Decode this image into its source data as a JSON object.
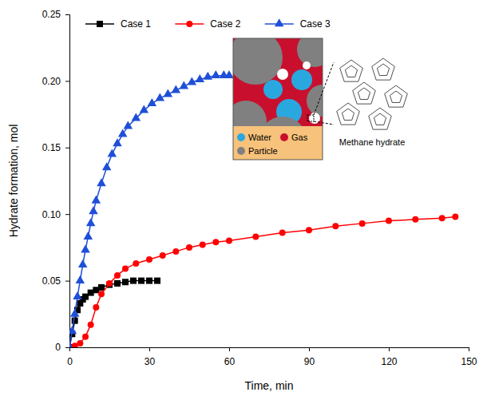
{
  "chart_data": {
    "type": "line",
    "xlabel": "Time, min",
    "ylabel": "Hydrate formation, mol",
    "xlim": [
      0,
      150
    ],
    "ylim": [
      0,
      0.25
    ],
    "xticks": [
      0,
      30,
      60,
      90,
      120,
      150
    ],
    "yticks": [
      0,
      0.05,
      {
        "value": 0.1,
        "label": "0.10"
      },
      0.15,
      {
        "value": 0.2,
        "label": "0.20"
      },
      0.25
    ],
    "legend": "upper left",
    "annotations": [
      "Water",
      "Gas",
      "Particle",
      "Methane hydrate"
    ],
    "series": [
      {
        "name": "Case 1",
        "color": "#000000",
        "marker": "square",
        "x": [
          0,
          1,
          2,
          3,
          4,
          5,
          6,
          8,
          10,
          12,
          15,
          18,
          21,
          24,
          27,
          30,
          33
        ],
        "values": [
          0,
          0.01,
          0.02,
          0.028,
          0.033,
          0.036,
          0.038,
          0.041,
          0.043,
          0.045,
          0.047,
          0.048,
          0.049,
          0.05,
          0.05,
          0.05,
          0.05
        ]
      },
      {
        "name": "Case 2",
        "color": "#ff0000",
        "marker": "circle",
        "x": [
          0,
          2,
          4,
          6,
          8,
          10,
          12,
          15,
          18,
          21,
          25,
          30,
          35,
          40,
          45,
          50,
          55,
          60,
          70,
          80,
          90,
          100,
          110,
          120,
          130,
          140,
          145
        ],
        "values": [
          0,
          0.001,
          0.003,
          0.008,
          0.017,
          0.03,
          0.04,
          0.048,
          0.054,
          0.059,
          0.063,
          0.066,
          0.069,
          0.072,
          0.075,
          0.077,
          0.079,
          0.08,
          0.083,
          0.086,
          0.088,
          0.091,
          0.093,
          0.095,
          0.096,
          0.097,
          0.098
        ]
      },
      {
        "name": "Case 3",
        "color": "#1f4fd8",
        "marker": "triangle",
        "x": [
          0,
          1,
          2,
          3,
          4,
          5,
          6,
          7,
          8,
          9,
          10,
          12,
          14,
          16,
          18,
          20,
          22,
          25,
          28,
          31,
          34,
          37,
          40,
          43,
          46,
          49,
          52,
          55,
          58,
          60
        ],
        "values": [
          0,
          0.012,
          0.025,
          0.038,
          0.05,
          0.062,
          0.073,
          0.083,
          0.093,
          0.102,
          0.11,
          0.123,
          0.135,
          0.145,
          0.153,
          0.16,
          0.166,
          0.172,
          0.178,
          0.183,
          0.187,
          0.19,
          0.193,
          0.196,
          0.199,
          0.201,
          0.203,
          0.204,
          0.204,
          0.204
        ]
      }
    ]
  }
}
